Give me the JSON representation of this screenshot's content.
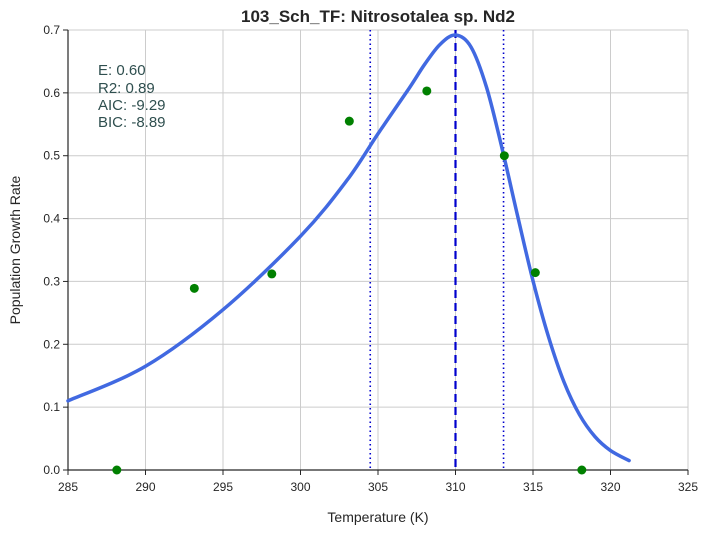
{
  "chart_data": {
    "type": "line",
    "title": "103_Sch_TF: Nitrosotalea sp. Nd2",
    "xlabel": "Temperature (K)",
    "ylabel": "Population Growth Rate",
    "xlim": [
      285,
      325
    ],
    "ylim": [
      0,
      0.7
    ],
    "xticks": [
      "285",
      "290",
      "295",
      "300",
      "305",
      "310",
      "315",
      "320",
      "325"
    ],
    "yticks": [
      "0.0",
      "0.1",
      "0.2",
      "0.3",
      "0.4",
      "0.5",
      "0.6",
      "0.7"
    ],
    "grid": true,
    "stats": [
      "E:  0.60",
      "R2:  0.89",
      "AIC: -9.29",
      "BIC: -8.89"
    ],
    "colors": {
      "fit": "#4169e1",
      "points": "#008000",
      "peak_line": "#0000cd",
      "bound_lines": "#0000cd"
    },
    "points": {
      "x": [
        288.15,
        293.15,
        298.15,
        303.15,
        308.15,
        313.15,
        315.15,
        318.15
      ],
      "y": [
        0.0,
        0.289,
        0.312,
        0.555,
        0.603,
        0.5,
        0.314,
        0.0
      ]
    },
    "fit_curve": {
      "x": [
        285,
        290,
        295,
        300,
        303,
        305,
        307,
        308,
        309,
        310,
        311,
        312,
        313,
        314,
        315,
        316,
        317,
        318,
        319,
        320,
        321.2
      ],
      "y": [
        0.11,
        0.165,
        0.255,
        0.372,
        0.461,
        0.535,
        0.607,
        0.645,
        0.677,
        0.692,
        0.673,
        0.609,
        0.512,
        0.405,
        0.301,
        0.212,
        0.14,
        0.088,
        0.053,
        0.031,
        0.015
      ]
    },
    "peak_line_x": 310.0,
    "bound_lines_x": [
      304.5,
      313.1
    ]
  }
}
